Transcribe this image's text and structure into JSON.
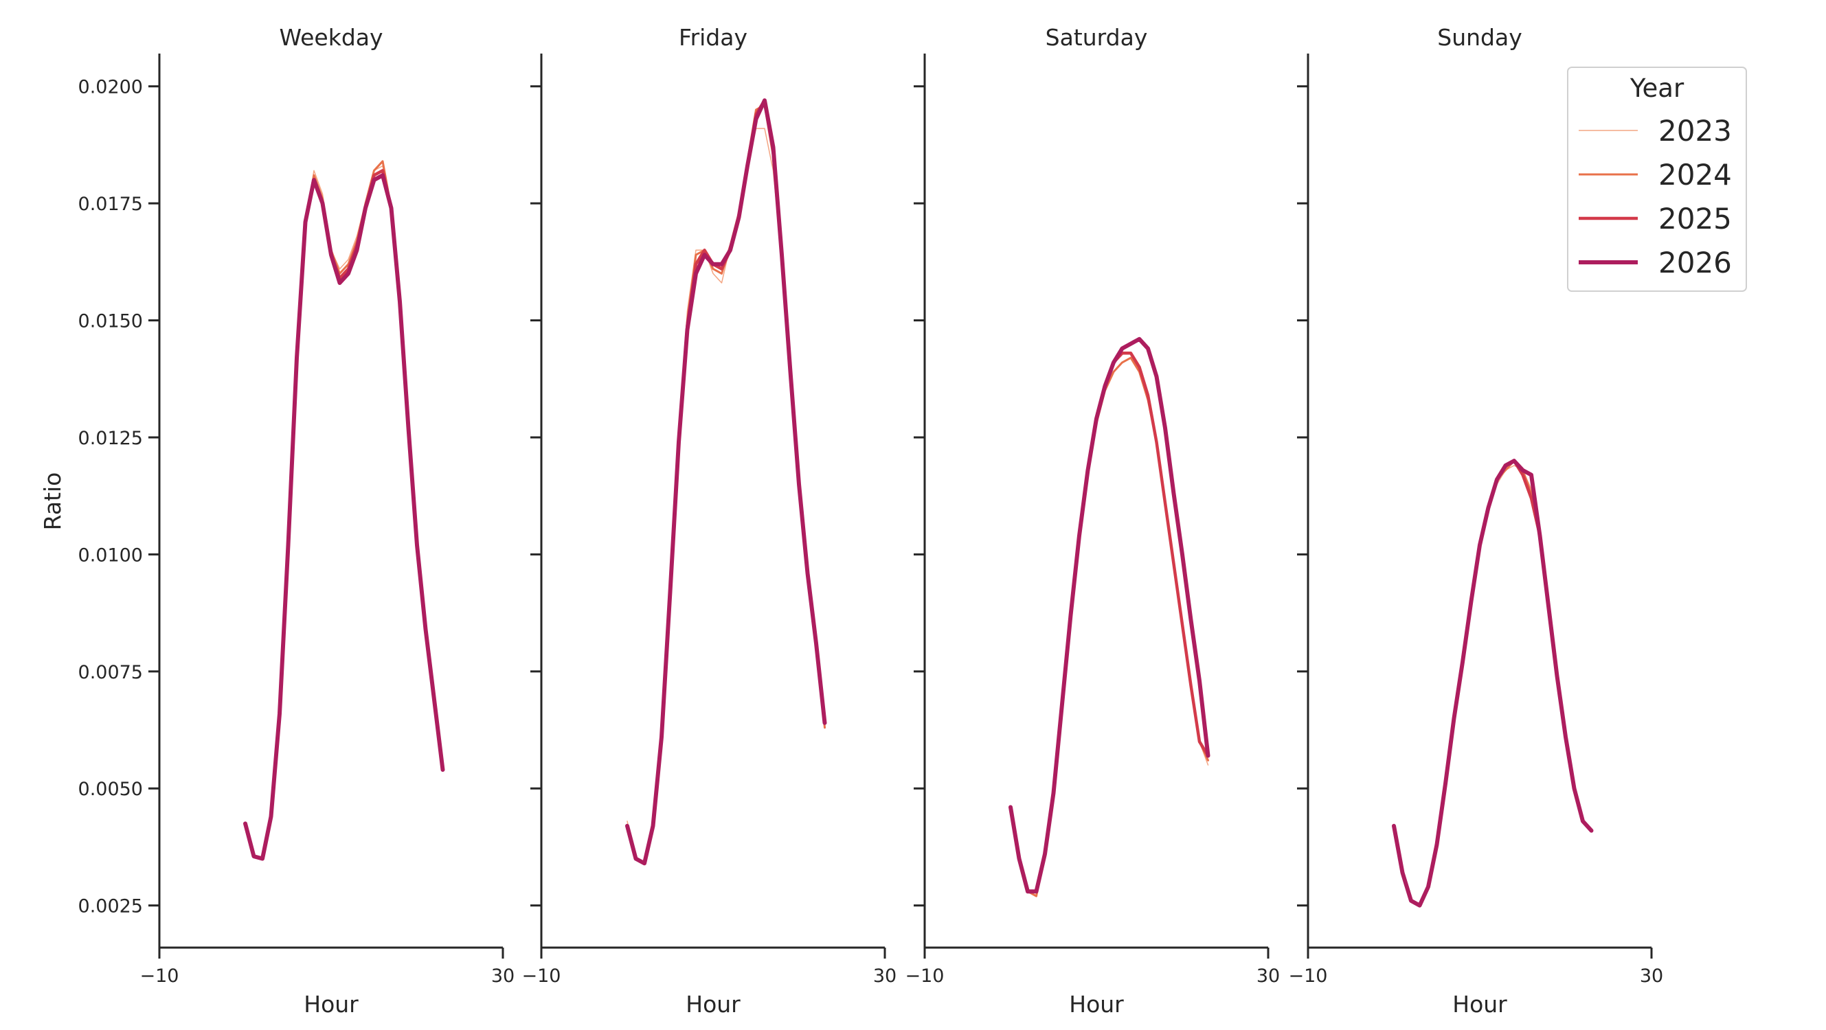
{
  "chart_data": {
    "type": "line",
    "ylabel": "Ratio",
    "xlabel": "Hour",
    "xlim": [
      -10,
      30
    ],
    "ylim": [
      0.0016,
      0.0207
    ],
    "x_ticks": [
      -10,
      30
    ],
    "x_tick_labels": [
      "−10",
      "30"
    ],
    "y_ticks": [
      0.0025,
      0.005,
      0.0075,
      0.01,
      0.0125,
      0.015,
      0.0175,
      0.02
    ],
    "y_tick_labels": [
      "0.0025",
      "0.0050",
      "0.0075",
      "0.0100",
      "0.0125",
      "0.0150",
      "0.0175",
      "0.0200"
    ],
    "grid": false,
    "legend": {
      "title": "Year",
      "placement": "top-right",
      "entries": [
        "2023",
        "2024",
        "2025",
        "2026"
      ]
    },
    "series_style": [
      {
        "name": "2023",
        "color": "#f4a582",
        "width": 1.5
      },
      {
        "name": "2024",
        "color": "#e8714a",
        "width": 3
      },
      {
        "name": "2025",
        "color": "#d33a4a",
        "width": 4.5
      },
      {
        "name": "2026",
        "color": "#ad1d5e",
        "width": 6
      }
    ],
    "panels": [
      {
        "title": "Weekday",
        "x": [
          0,
          1,
          2,
          3,
          4,
          5,
          6,
          7,
          8,
          9,
          10,
          11,
          12,
          13,
          14,
          15,
          16,
          17,
          18,
          19,
          20,
          21,
          22,
          23
        ],
        "series": [
          {
            "name": "2023",
            "values": [
              0.00425,
              0.00355,
              0.0035,
              0.0044,
              0.0066,
              0.0102,
              0.0142,
              0.0171,
              0.0182,
              0.0177,
              0.0165,
              0.0161,
              0.0163,
              0.0168,
              0.0175,
              0.0182,
              0.0183,
              0.0174,
              0.0154,
              0.0127,
              0.0102,
              0.0084,
              0.0069,
              0.0055
            ]
          },
          {
            "name": "2024",
            "values": [
              0.00425,
              0.00355,
              0.0035,
              0.0044,
              0.0066,
              0.0102,
              0.0142,
              0.0171,
              0.0181,
              0.0176,
              0.0165,
              0.016,
              0.0162,
              0.0167,
              0.0175,
              0.0182,
              0.0184,
              0.0174,
              0.0154,
              0.0127,
              0.0102,
              0.0084,
              0.0069,
              0.0054
            ]
          },
          {
            "name": "2025",
            "values": [
              0.00425,
              0.00355,
              0.0035,
              0.0044,
              0.0066,
              0.0102,
              0.0142,
              0.0171,
              0.018,
              0.0175,
              0.0164,
              0.0159,
              0.0161,
              0.0166,
              0.0174,
              0.0181,
              0.0182,
              0.0174,
              0.0154,
              0.0127,
              0.0102,
              0.0084,
              0.0069,
              0.0054
            ]
          },
          {
            "name": "2026",
            "values": [
              0.00425,
              0.00355,
              0.0035,
              0.0044,
              0.0066,
              0.0102,
              0.0142,
              0.0171,
              0.018,
              0.0175,
              0.0164,
              0.0158,
              0.016,
              0.0165,
              0.0174,
              0.018,
              0.0181,
              0.0174,
              0.0154,
              0.0127,
              0.0102,
              0.0084,
              0.0069,
              0.0054
            ]
          }
        ]
      },
      {
        "title": "Friday",
        "x": [
          0,
          1,
          2,
          3,
          4,
          5,
          6,
          7,
          8,
          9,
          10,
          11,
          12,
          13,
          14,
          15,
          16,
          17,
          18,
          19,
          20,
          21,
          22,
          23
        ],
        "series": [
          {
            "name": "2023",
            "values": [
              0.0043,
              0.0035,
              0.0034,
              0.0042,
              0.0061,
              0.0092,
              0.0124,
              0.0152,
              0.0165,
              0.0165,
              0.016,
              0.0158,
              0.0166,
              0.0173,
              0.0183,
              0.0191,
              0.0191,
              0.0182,
              0.0163,
              0.0139,
              0.0115,
              0.0095,
              0.0081,
              0.0063
            ]
          },
          {
            "name": "2024",
            "values": [
              0.0042,
              0.0035,
              0.0034,
              0.0042,
              0.0061,
              0.0092,
              0.0124,
              0.015,
              0.0164,
              0.0165,
              0.0161,
              0.016,
              0.0166,
              0.0173,
              0.0184,
              0.0195,
              0.0196,
              0.0185,
              0.0164,
              0.0139,
              0.0115,
              0.0096,
              0.0081,
              0.0063
            ]
          },
          {
            "name": "2025",
            "values": [
              0.0042,
              0.0035,
              0.0034,
              0.0042,
              0.0061,
              0.0092,
              0.0124,
              0.0149,
              0.0162,
              0.0165,
              0.0162,
              0.0161,
              0.0165,
              0.0172,
              0.0183,
              0.0194,
              0.0197,
              0.0186,
              0.0164,
              0.0139,
              0.0115,
              0.0096,
              0.0081,
              0.0064
            ]
          },
          {
            "name": "2026",
            "values": [
              0.0042,
              0.0035,
              0.0034,
              0.0042,
              0.0061,
              0.0092,
              0.0124,
              0.0148,
              0.016,
              0.0164,
              0.0162,
              0.0162,
              0.0165,
              0.0172,
              0.0183,
              0.0193,
              0.0197,
              0.0187,
              0.0164,
              0.0139,
              0.0115,
              0.0096,
              0.0081,
              0.0064
            ]
          }
        ]
      },
      {
        "title": "Saturday",
        "x": [
          0,
          1,
          2,
          3,
          4,
          5,
          6,
          7,
          8,
          9,
          10,
          11,
          12,
          13,
          14,
          15,
          16,
          17,
          18,
          19,
          20,
          21,
          22,
          23
        ],
        "series": [
          {
            "name": "2023",
            "values": [
              0.0046,
              0.0035,
              0.0028,
              0.0028,
              0.0036,
              0.0049,
              0.0068,
              0.0087,
              0.0104,
              0.0118,
              0.0128,
              0.0135,
              0.0139,
              0.0141,
              0.0142,
              0.0139,
              0.0133,
              0.0124,
              0.0111,
              0.0098,
              0.0085,
              0.0072,
              0.006,
              0.0055
            ]
          },
          {
            "name": "2024",
            "values": [
              0.0046,
              0.0035,
              0.0028,
              0.0027,
              0.0036,
              0.0049,
              0.0068,
              0.0087,
              0.0104,
              0.0118,
              0.0128,
              0.0135,
              0.0139,
              0.0141,
              0.0142,
              0.0139,
              0.0133,
              0.0124,
              0.0111,
              0.0098,
              0.0085,
              0.0072,
              0.006,
              0.0056
            ]
          },
          {
            "name": "2025",
            "values": [
              0.0046,
              0.0035,
              0.0028,
              0.0028,
              0.0036,
              0.0049,
              0.0068,
              0.0087,
              0.0104,
              0.0118,
              0.0129,
              0.0136,
              0.0141,
              0.0143,
              0.0143,
              0.014,
              0.0134,
              0.0124,
              0.0111,
              0.0098,
              0.0085,
              0.0072,
              0.006,
              0.0057
            ]
          },
          {
            "name": "2026",
            "values": [
              0.0046,
              0.0035,
              0.0028,
              0.0028,
              0.0036,
              0.0049,
              0.0068,
              0.0087,
              0.0104,
              0.0118,
              0.0129,
              0.0136,
              0.0141,
              0.0144,
              0.0145,
              0.0146,
              0.0144,
              0.0138,
              0.0127,
              0.0113,
              0.01,
              0.0086,
              0.0073,
              0.0057
            ]
          }
        ]
      },
      {
        "title": "Sunday",
        "x": [
          0,
          1,
          2,
          3,
          4,
          5,
          6,
          7,
          8,
          9,
          10,
          11,
          12,
          13,
          14,
          15,
          16,
          17,
          18,
          19,
          20,
          21,
          22,
          23
        ],
        "series": [
          {
            "name": "2023",
            "values": [
              0.0042,
              0.0032,
              0.0026,
              0.0025,
              0.0029,
              0.0038,
              0.0051,
              0.0065,
              0.0077,
              0.009,
              0.0102,
              0.011,
              0.0115,
              0.0118,
              0.0119,
              0.0118,
              0.0114,
              0.0106,
              0.009,
              0.0075,
              0.0062,
              0.0051,
              0.0043,
              0.0041
            ]
          },
          {
            "name": "2024",
            "values": [
              0.0042,
              0.0032,
              0.0026,
              0.0025,
              0.0029,
              0.0038,
              0.0051,
              0.0065,
              0.0077,
              0.009,
              0.0102,
              0.011,
              0.0116,
              0.0118,
              0.012,
              0.0118,
              0.0113,
              0.0104,
              0.0089,
              0.0074,
              0.0061,
              0.005,
              0.0043,
              0.0041
            ]
          },
          {
            "name": "2025",
            "values": [
              0.0042,
              0.0032,
              0.0026,
              0.0025,
              0.0029,
              0.0038,
              0.0051,
              0.0065,
              0.0077,
              0.009,
              0.0102,
              0.011,
              0.0116,
              0.0119,
              0.012,
              0.0117,
              0.0112,
              0.0104,
              0.0089,
              0.0074,
              0.0061,
              0.005,
              0.0043,
              0.0041
            ]
          },
          {
            "name": "2026",
            "values": [
              0.0042,
              0.0032,
              0.0026,
              0.0025,
              0.0029,
              0.0038,
              0.0051,
              0.0065,
              0.0077,
              0.009,
              0.0102,
              0.011,
              0.0116,
              0.0119,
              0.012,
              0.0118,
              0.0117,
              0.0104,
              0.0089,
              0.0074,
              0.0061,
              0.005,
              0.0043,
              0.0041
            ]
          }
        ]
      }
    ]
  }
}
